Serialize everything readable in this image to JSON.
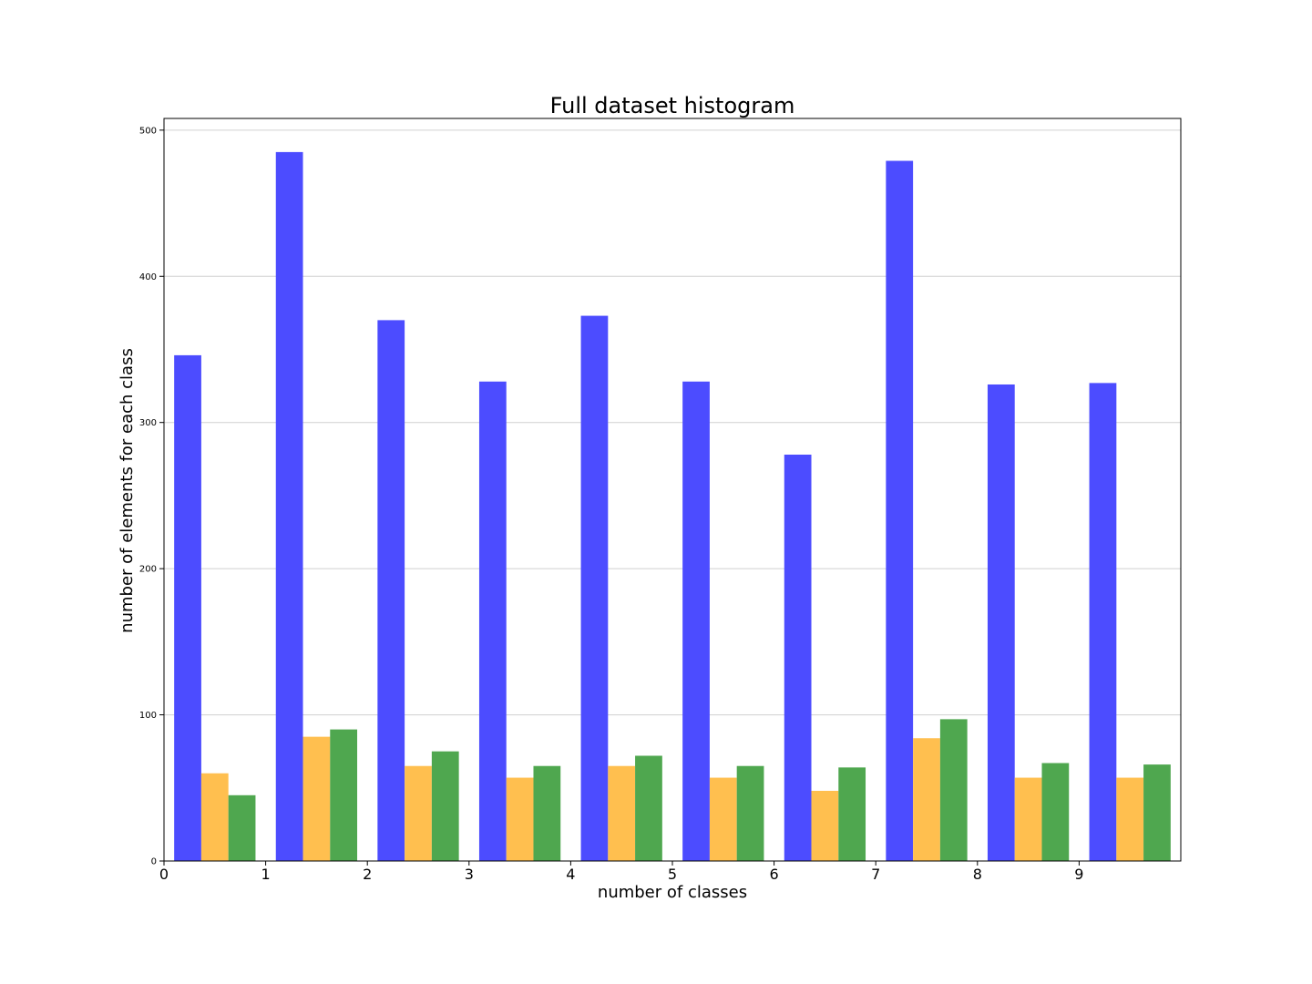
{
  "chart_data": {
    "type": "bar",
    "title": "Full dataset histogram",
    "xlabel": "number of classes",
    "ylabel": "number of elements for each class",
    "categories": [
      "0",
      "1",
      "2",
      "3",
      "4",
      "5",
      "6",
      "7",
      "8",
      "9"
    ],
    "x_ticks": [
      "0",
      "1",
      "2",
      "3",
      "4",
      "5",
      "6",
      "7",
      "8",
      "9"
    ],
    "y_ticks": [
      "0",
      "100",
      "200",
      "300",
      "400",
      "500"
    ],
    "xlim": [
      0,
      10
    ],
    "ylim": [
      0,
      508
    ],
    "grid": "horizontal",
    "series": [
      {
        "color": "#4c4cff",
        "values": [
          346,
          485,
          370,
          328,
          373,
          328,
          278,
          479,
          326,
          327
        ]
      },
      {
        "color": "#ffbf4f",
        "values": [
          60,
          85,
          65,
          57,
          65,
          57,
          48,
          84,
          57,
          57
        ]
      },
      {
        "color": "#4fa74f",
        "values": [
          45,
          90,
          75,
          65,
          72,
          65,
          64,
          97,
          67,
          66
        ]
      }
    ]
  }
}
